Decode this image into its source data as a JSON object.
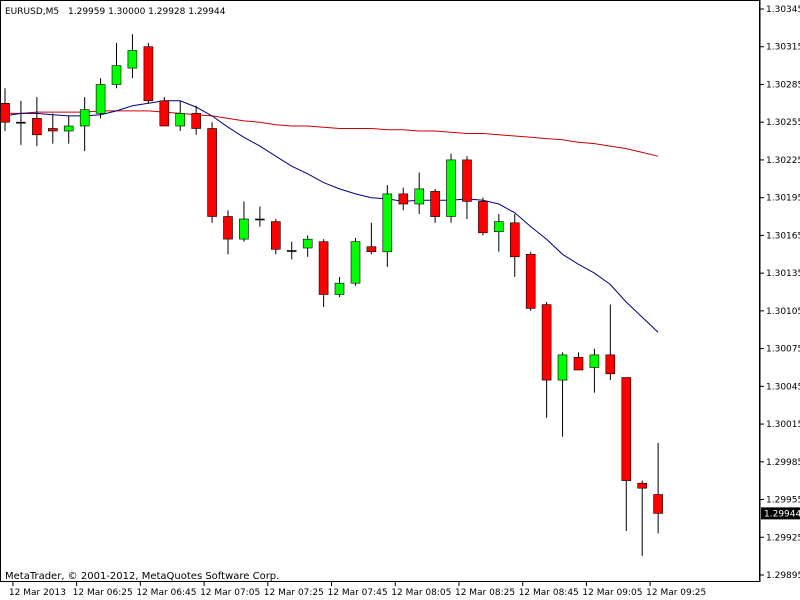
{
  "header": {
    "symbol": "EURUSD,M5",
    "ohlc": "1.29959 1.30000 1.29928 1.29944"
  },
  "footer": {
    "copyright": "MetaTrader, © 2001-2012, MetaQuotes Software Corp."
  },
  "colors": {
    "bull": "#00ff00",
    "bear": "#ff0000",
    "wick": "#000000",
    "ma_fast": "#000080",
    "ma_slow": "#cc0000",
    "frame": "#000000",
    "price_tag_bg": "#000000",
    "price_tag_text": "#ffffff"
  },
  "chart_data": {
    "type": "candlestick",
    "symbol": "EURUSD",
    "timeframe": "M5",
    "current_price": "1.29944",
    "ylim": [
      1.2989,
      1.3035
    ],
    "y_ticks": [
      "1.30345",
      "1.30315",
      "1.30285",
      "1.30255",
      "1.30225",
      "1.30195",
      "1.30165",
      "1.30135",
      "1.30105",
      "1.30075",
      "1.30045",
      "1.30015",
      "1.29985",
      "1.29955",
      "1.29925",
      "1.29895"
    ],
    "x_ticks": [
      {
        "index": 1,
        "label": "12 Mar 2013"
      },
      {
        "index": 5,
        "label": "12 Mar 06:25"
      },
      {
        "index": 9,
        "label": "12 Mar 06:45"
      },
      {
        "index": 13,
        "label": "12 Mar 07:05"
      },
      {
        "index": 17,
        "label": "12 Mar 07:25"
      },
      {
        "index": 21,
        "label": "12 Mar 07:45"
      },
      {
        "index": 25,
        "label": "12 Mar 08:05"
      },
      {
        "index": 29,
        "label": "12 Mar 08:25"
      },
      {
        "index": 33,
        "label": "12 Mar 08:45"
      },
      {
        "index": 37,
        "label": "12 Mar 09:05"
      },
      {
        "index": 41,
        "label": "12 Mar 09:25"
      }
    ],
    "candles": [
      {
        "o": 1.3027,
        "h": 1.30282,
        "l": 1.30248,
        "c": 1.30255
      },
      {
        "o": 1.30255,
        "h": 1.30272,
        "l": 1.30237,
        "c": 1.30255
      },
      {
        "o": 1.30258,
        "h": 1.30275,
        "l": 1.30236,
        "c": 1.30245
      },
      {
        "o": 1.3025,
        "h": 1.30262,
        "l": 1.30238,
        "c": 1.30248
      },
      {
        "o": 1.30248,
        "h": 1.3026,
        "l": 1.30238,
        "c": 1.30252
      },
      {
        "o": 1.30252,
        "h": 1.30275,
        "l": 1.30232,
        "c": 1.30265
      },
      {
        "o": 1.30262,
        "h": 1.3029,
        "l": 1.30258,
        "c": 1.30285
      },
      {
        "o": 1.30285,
        "h": 1.30318,
        "l": 1.30282,
        "c": 1.303
      },
      {
        "o": 1.30298,
        "h": 1.30325,
        "l": 1.3029,
        "c": 1.30312
      },
      {
        "o": 1.30315,
        "h": 1.30318,
        "l": 1.3027,
        "c": 1.30272
      },
      {
        "o": 1.30272,
        "h": 1.30275,
        "l": 1.30252,
        "c": 1.30252
      },
      {
        "o": 1.30252,
        "h": 1.30272,
        "l": 1.30248,
        "c": 1.30262
      },
      {
        "o": 1.30262,
        "h": 1.30268,
        "l": 1.30245,
        "c": 1.3025
      },
      {
        "o": 1.3025,
        "h": 1.30255,
        "l": 1.30175,
        "c": 1.3018
      },
      {
        "o": 1.3018,
        "h": 1.30185,
        "l": 1.3015,
        "c": 1.30162
      },
      {
        "o": 1.30162,
        "h": 1.30192,
        "l": 1.3016,
        "c": 1.30178
      },
      {
        "o": 1.30178,
        "h": 1.30188,
        "l": 1.30172,
        "c": 1.30178
      },
      {
        "o": 1.30176,
        "h": 1.30178,
        "l": 1.3015,
        "c": 1.30154
      },
      {
        "o": 1.30153,
        "h": 1.3016,
        "l": 1.30146,
        "c": 1.30153
      },
      {
        "o": 1.30155,
        "h": 1.30165,
        "l": 1.30148,
        "c": 1.30162
      },
      {
        "o": 1.3016,
        "h": 1.30162,
        "l": 1.30108,
        "c": 1.30118
      },
      {
        "o": 1.30118,
        "h": 1.30132,
        "l": 1.30116,
        "c": 1.30127
      },
      {
        "o": 1.30127,
        "h": 1.30163,
        "l": 1.30125,
        "c": 1.3016
      },
      {
        "o": 1.30156,
        "h": 1.30175,
        "l": 1.3015,
        "c": 1.30152
      },
      {
        "o": 1.30152,
        "h": 1.30205,
        "l": 1.3014,
        "c": 1.30198
      },
      {
        "o": 1.30198,
        "h": 1.30203,
        "l": 1.30185,
        "c": 1.3019
      },
      {
        "o": 1.3019,
        "h": 1.30215,
        "l": 1.30182,
        "c": 1.30202
      },
      {
        "o": 1.302,
        "h": 1.30202,
        "l": 1.30175,
        "c": 1.3018
      },
      {
        "o": 1.3018,
        "h": 1.3023,
        "l": 1.30175,
        "c": 1.30225
      },
      {
        "o": 1.30225,
        "h": 1.30228,
        "l": 1.30178,
        "c": 1.30192
      },
      {
        "o": 1.30192,
        "h": 1.30195,
        "l": 1.30165,
        "c": 1.30167
      },
      {
        "o": 1.30168,
        "h": 1.30182,
        "l": 1.30152,
        "c": 1.30176
      },
      {
        "o": 1.30175,
        "h": 1.30182,
        "l": 1.30132,
        "c": 1.30148
      },
      {
        "o": 1.3015,
        "h": 1.30152,
        "l": 1.30105,
        "c": 1.30107
      },
      {
        "o": 1.3011,
        "h": 1.30112,
        "l": 1.3002,
        "c": 1.3005
      },
      {
        "o": 1.3005,
        "h": 1.30072,
        "l": 1.30005,
        "c": 1.3007
      },
      {
        "o": 1.30068,
        "h": 1.30072,
        "l": 1.30058,
        "c": 1.30058
      },
      {
        "o": 1.3006,
        "h": 1.30075,
        "l": 1.3004,
        "c": 1.3007
      },
      {
        "o": 1.3007,
        "h": 1.3011,
        "l": 1.3005,
        "c": 1.30055
      },
      {
        "o": 1.30052,
        "h": 1.30052,
        "l": 1.2993,
        "c": 1.2997
      },
      {
        "o": 1.29968,
        "h": 1.2997,
        "l": 1.2991,
        "c": 1.29964
      },
      {
        "o": 1.29959,
        "h": 1.3,
        "l": 1.29928,
        "c": 1.29944
      }
    ],
    "ma_fast": [
      1.3026,
      1.30262,
      1.30262,
      1.30261,
      1.3026,
      1.3026,
      1.30261,
      1.30264,
      1.30268,
      1.3027,
      1.30272,
      1.30272,
      1.30267,
      1.3026,
      1.30251,
      1.30243,
      1.30236,
      1.30228,
      1.3022,
      1.30214,
      1.30207,
      1.30202,
      1.30198,
      1.30195,
      1.30194,
      1.30192,
      1.30193,
      1.30193,
      1.30193,
      1.30194,
      1.30193,
      1.3019,
      1.30183,
      1.30172,
      1.30162,
      1.3015,
      1.30142,
      1.30135,
      1.30126,
      1.30112,
      1.301,
      1.30088
    ],
    "ma_slow": [
      1.30262,
      1.30262,
      1.30263,
      1.30263,
      1.30263,
      1.30263,
      1.30264,
      1.30264,
      1.30264,
      1.30264,
      1.30263,
      1.30262,
      1.30261,
      1.3026,
      1.30258,
      1.30256,
      1.30255,
      1.30253,
      1.30252,
      1.30252,
      1.30251,
      1.3025,
      1.3025,
      1.3025,
      1.30249,
      1.30249,
      1.30248,
      1.30248,
      1.30247,
      1.30246,
      1.30246,
      1.30245,
      1.30244,
      1.30243,
      1.30242,
      1.30241,
      1.30239,
      1.30238,
      1.30236,
      1.30234,
      1.30231,
      1.30228
    ]
  }
}
